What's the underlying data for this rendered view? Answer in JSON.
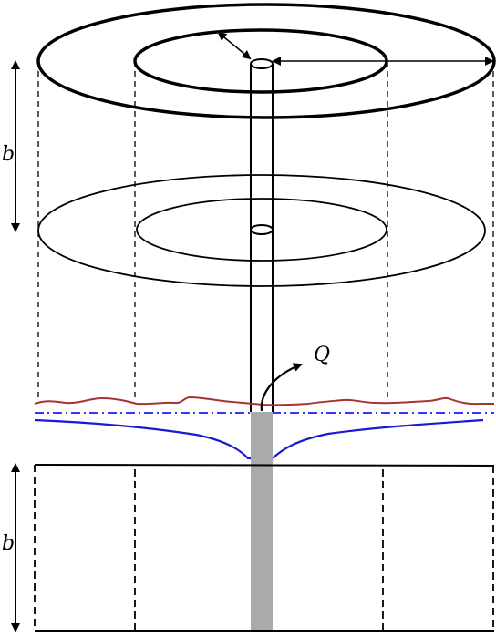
{
  "labels": {
    "b_upper": "b",
    "b_lower": "b",
    "discharge": "Q"
  },
  "colors": {
    "outline": "#000000",
    "water_table": "#a83232",
    "reference_level": "#1a1aff",
    "drawdown_curve": "#1a1ad0",
    "well_screen": "#aaaaaa"
  }
}
